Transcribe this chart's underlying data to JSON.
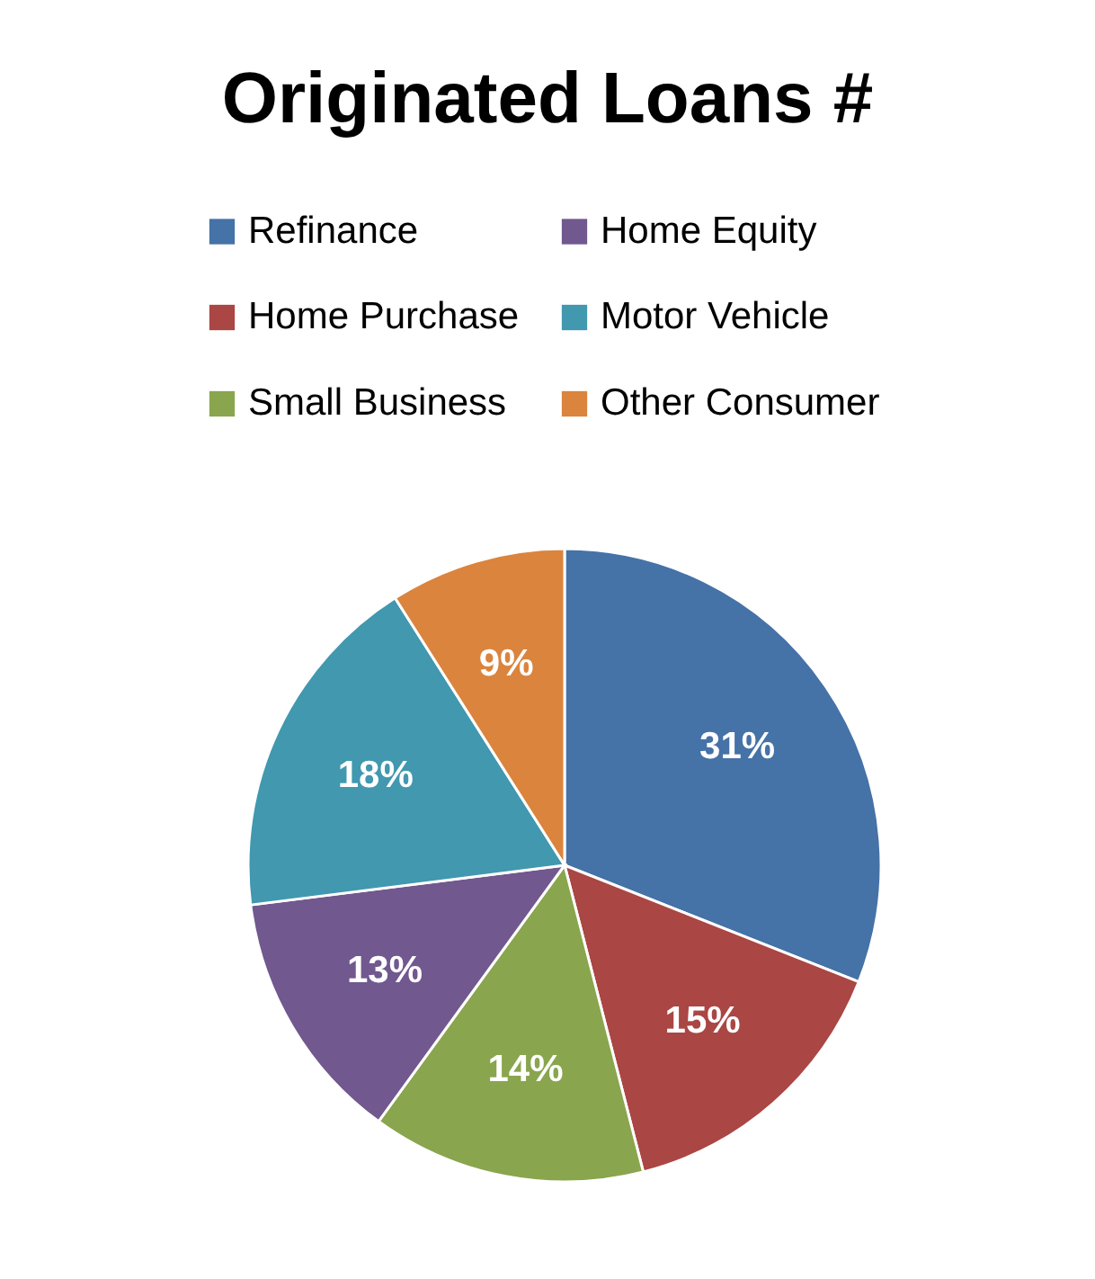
{
  "chart_data": {
    "type": "pie",
    "title": "Originated Loans #",
    "categories": [
      "Refinance",
      "Home Purchase",
      "Small Business",
      "Home Equity",
      "Motor Vehicle",
      "Other Consumer"
    ],
    "values": [
      31,
      15,
      14,
      13,
      18,
      9
    ],
    "colors": [
      "#4572a7",
      "#aa4643",
      "#89a54e",
      "#71588f",
      "#4198af",
      "#db843d"
    ],
    "value_labels": [
      "31%",
      "15%",
      "14%",
      "13%",
      "18%",
      "9%"
    ],
    "legend": "top"
  }
}
